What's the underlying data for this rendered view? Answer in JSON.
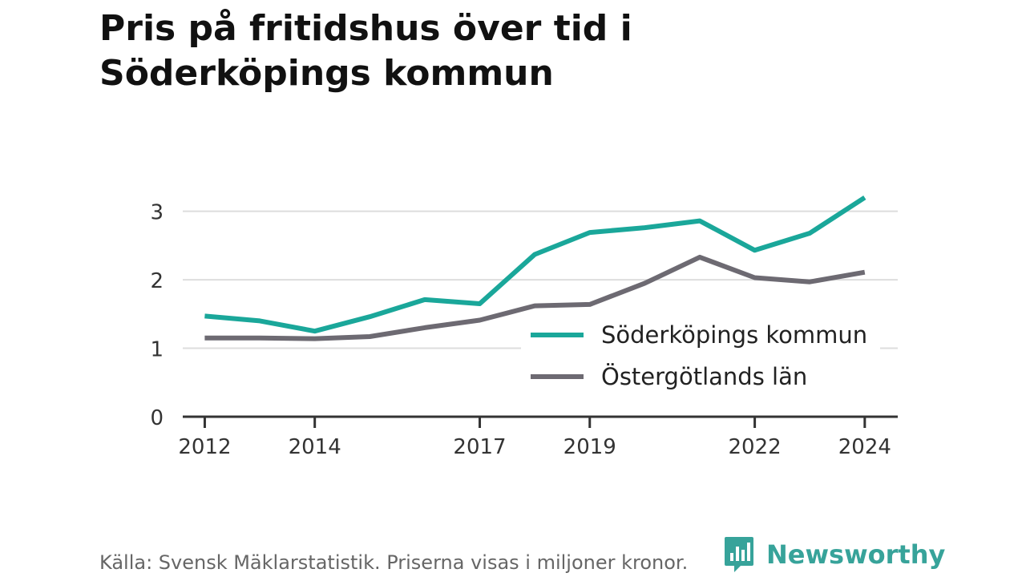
{
  "title": "Pris på fritidshus över tid i Söderköpings kommun",
  "footer": {
    "source": "Källa: Svensk Mäklarstatistik. Priserna visas i miljoner kronor."
  },
  "brand": {
    "name": "Newsworthy"
  },
  "colors": {
    "primary_series": "#1aa79a",
    "secondary_series": "#6d6a72",
    "gridline": "#dddddd",
    "axis": "#333333",
    "brand": "#37a39a"
  },
  "chart_data": {
    "type": "line",
    "title": "Pris på fritidshus över tid i Söderköpings kommun",
    "xlabel": "",
    "ylabel": "",
    "x": [
      2012,
      2013,
      2014,
      2015,
      2016,
      2017,
      2018,
      2019,
      2020,
      2021,
      2022,
      2023,
      2024
    ],
    "x_ticks": [
      2012,
      2014,
      2017,
      2019,
      2022,
      2024
    ],
    "y_ticks": [
      0,
      1,
      2,
      3
    ],
    "ylim": [
      0,
      3.3
    ],
    "xlim": [
      2011.6,
      2024.6
    ],
    "grid": true,
    "legend_position": "inside-lower-right",
    "series": [
      {
        "name": "Söderköpings kommun",
        "color": "#1aa79a",
        "values": [
          1.47,
          1.4,
          1.25,
          1.46,
          1.71,
          1.65,
          2.37,
          2.69,
          2.76,
          2.86,
          2.43,
          2.68,
          3.2
        ]
      },
      {
        "name": "Östergötlands län",
        "color": "#6d6a72",
        "values": [
          1.15,
          1.15,
          1.14,
          1.17,
          1.3,
          1.41,
          1.62,
          1.64,
          1.95,
          2.33,
          2.03,
          1.97,
          2.11
        ]
      }
    ]
  }
}
